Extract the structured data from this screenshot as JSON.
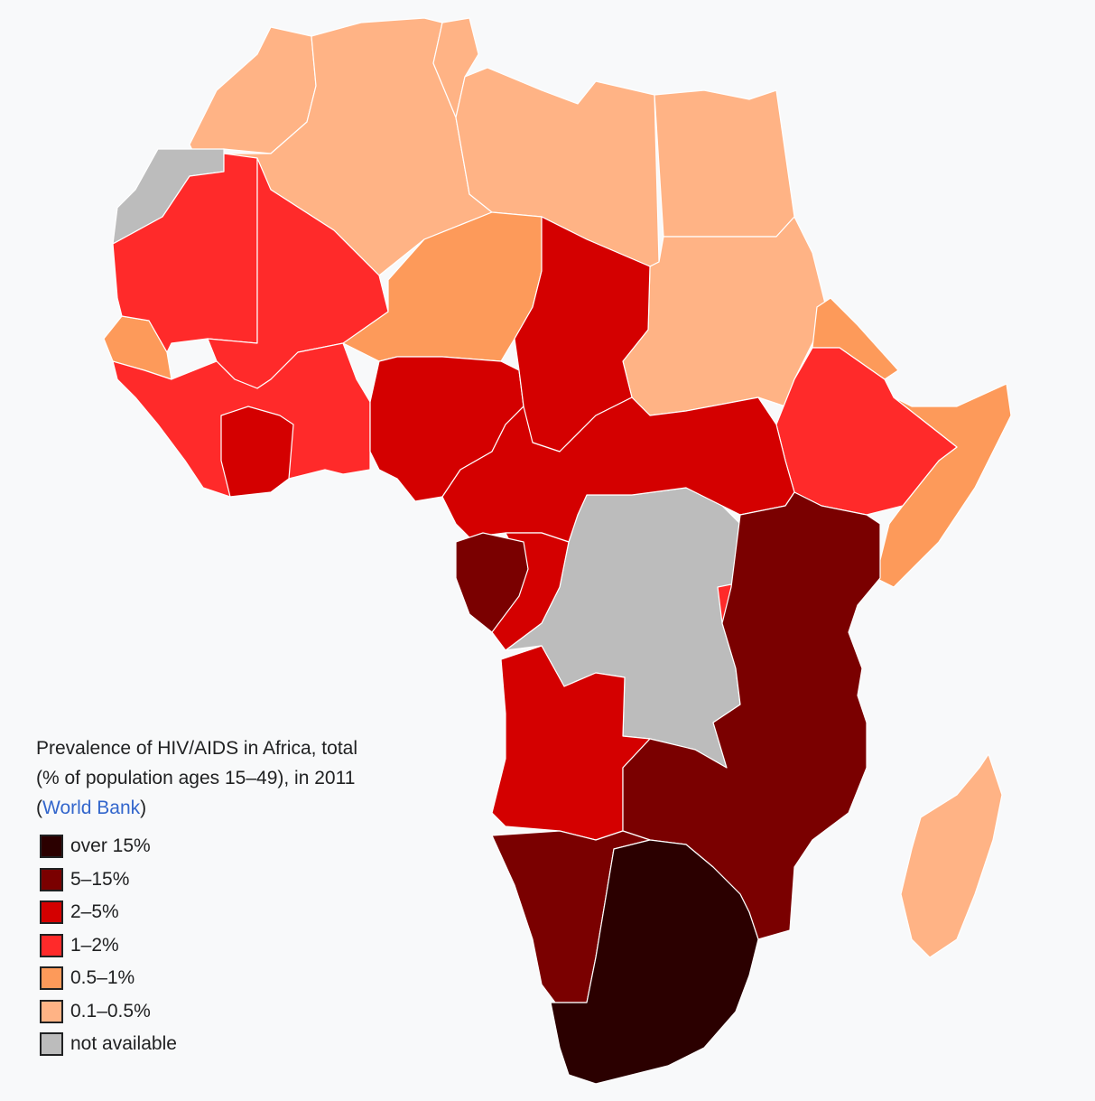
{
  "legend": {
    "title_line1": "Prevalence of HIV/AIDS in Africa, total",
    "title_line2": "(% of population ages 15–49), in 2011",
    "source_open": "(",
    "source_link": "World Bank",
    "source_close": ")",
    "items": [
      {
        "label": "over 15%",
        "color": "#2b0000"
      },
      {
        "label": "5–15%",
        "color": "#7a0000"
      },
      {
        "label": "2–5%",
        "color": "#d40000"
      },
      {
        "label": "1–2%",
        "color": "#ff2a2a"
      },
      {
        "label": "0.5–1%",
        "color": "#fd9a5a"
      },
      {
        "label": "0.1–0.5%",
        "color": "#ffb385"
      },
      {
        "label": "not available",
        "color": "#bcbcbc"
      }
    ]
  },
  "colors": {
    "over15": "#2b0000",
    "c5_15": "#7a0000",
    "c2_5": "#d40000",
    "c1_2": "#ff2a2a",
    "c05_1": "#fd9a5a",
    "c01_05": "#ffb385",
    "na": "#bcbcbc"
  }
}
